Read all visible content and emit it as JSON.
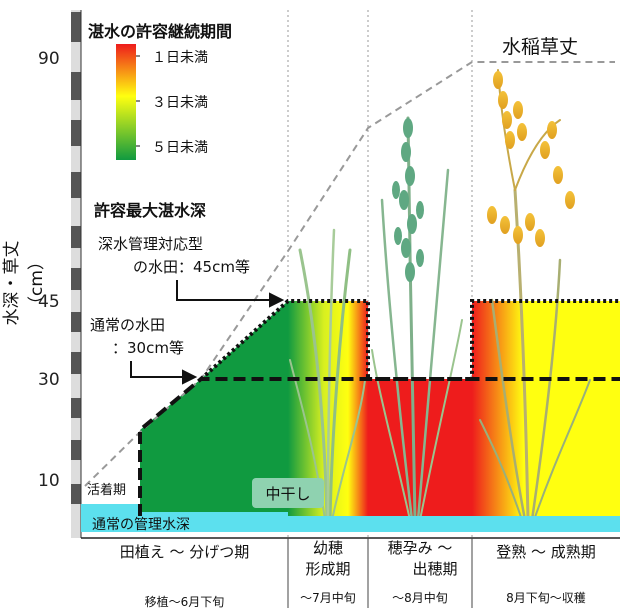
{
  "y_axis": {
    "title": "水深・草丈（cm）",
    "ticks": [
      "90",
      "45",
      "30",
      "10"
    ]
  },
  "legend": {
    "title": "湛水の許容継続期間",
    "items": [
      "１日未満",
      "３日未満",
      "５日未満"
    ],
    "colors": {
      "red": "#ee1c1c",
      "yellow": "#ffff10",
      "green": "#109a40"
    }
  },
  "plant_height_label": "水稲草丈",
  "max_depth": {
    "title": "許容最大湛水深",
    "deep_line1": "深水管理対応型",
    "deep_line2": "の水田：45cm等",
    "normal_line1": "通常の水田",
    "normal_line2": "：30cm等"
  },
  "rooting_label": "活着期",
  "midseason_drainage_label": "中干し",
  "normal_water_label": "通常の管理水深",
  "stages": [
    {
      "line1": "田植え ～ 分げつ期",
      "line2": "",
      "period": "移植～6月下旬"
    },
    {
      "line1": "幼穂",
      "line2": "形成期",
      "period": "～7月中旬"
    },
    {
      "line1": "穂孕み ～",
      "line2": "出穂期",
      "period": "～8月中旬"
    },
    {
      "line1": "登熟 ～ 成熟期",
      "line2": "",
      "period": "8月下旬～収穫"
    }
  ],
  "colors": {
    "water": "#5ce0ee",
    "axis_bar_dark": "#555555",
    "axis_bar_light": "#dddddd",
    "grid": "#999999"
  }
}
